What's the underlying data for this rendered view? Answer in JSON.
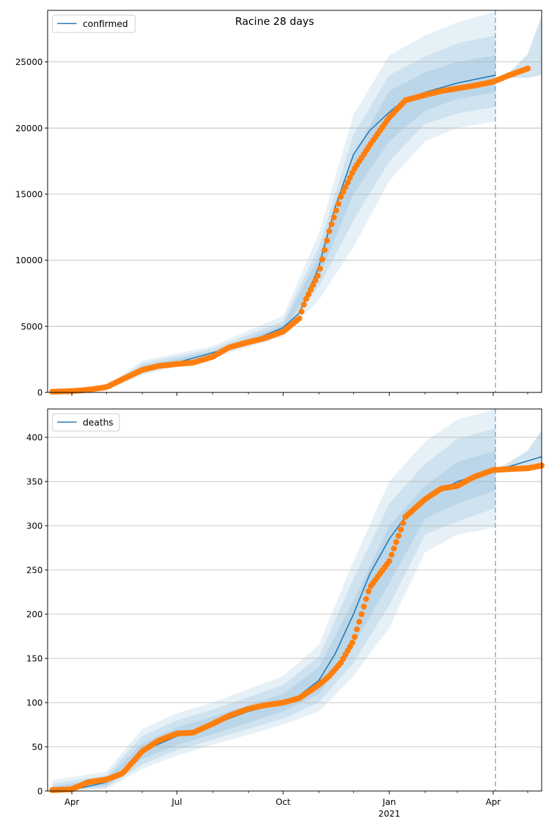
{
  "chart_data": [
    {
      "type": "line",
      "title": "Racine 28 days",
      "legend": {
        "label": "confirmed",
        "placement": "top-left"
      },
      "ylim": [
        0,
        28900
      ],
      "yticks": [
        0,
        5000,
        10000,
        15000,
        20000,
        25000
      ],
      "ytick_labels": [
        "0",
        "5000",
        "10000",
        "15000",
        "20000",
        "25000"
      ],
      "grid": "horizontal",
      "forecast_start": "2021-04-03",
      "series": [
        {
          "name": "confirmed",
          "kind": "model",
          "x": [
            "2020-03-15",
            "2020-04-01",
            "2020-05-01",
            "2020-05-15",
            "2020-06-01",
            "2020-07-01",
            "2020-08-01",
            "2020-09-01",
            "2020-10-01",
            "2020-10-15",
            "2020-11-01",
            "2020-11-15",
            "2020-12-01",
            "2020-12-15",
            "2021-01-01",
            "2021-01-15",
            "2021-02-01",
            "2021-03-01",
            "2021-04-03"
          ],
          "y": [
            0,
            50,
            300,
            900,
            1800,
            2250,
            3000,
            3800,
            4900,
            6000,
            9500,
            14000,
            18000,
            19800,
            21200,
            22200,
            22700,
            23400,
            24000
          ]
        },
        {
          "name": "observed",
          "kind": "points",
          "x": [
            "2020-03-15",
            "2020-04-01",
            "2020-04-15",
            "2020-05-01",
            "2020-05-15",
            "2020-06-01",
            "2020-06-15",
            "2020-07-01",
            "2020-07-15",
            "2020-08-01",
            "2020-08-15",
            "2020-09-01",
            "2020-09-15",
            "2020-10-01",
            "2020-10-15",
            "2020-10-20",
            "2020-11-01",
            "2020-11-10",
            "2020-11-20",
            "2020-12-01",
            "2020-12-15",
            "2021-01-01",
            "2021-01-15",
            "2021-02-01",
            "2021-02-15",
            "2021-03-01",
            "2021-03-15",
            "2021-04-01",
            "2021-04-15",
            "2021-05-01"
          ],
          "y": [
            50,
            100,
            200,
            400,
            1000,
            1700,
            2000,
            2150,
            2250,
            2700,
            3400,
            3800,
            4100,
            4600,
            5600,
            6900,
            9000,
            12200,
            14800,
            16800,
            18700,
            20800,
            22100,
            22500,
            22800,
            23000,
            23200,
            23500,
            24000,
            24500
          ]
        }
      ],
      "bands": [
        {
          "x": [
            "2020-03-15",
            "2020-05-01",
            "2020-06-01",
            "2020-08-01",
            "2020-10-01",
            "2020-11-01",
            "2020-12-01",
            "2021-01-01",
            "2021-02-01",
            "2021-03-01",
            "2021-04-03"
          ],
          "lower": [
            0,
            150,
            1300,
            2600,
            4200,
            7000,
            11000,
            16000,
            19000,
            20000,
            20500
          ],
          "upper": [
            50,
            500,
            2400,
            3500,
            5800,
            12000,
            21000,
            25500,
            27000,
            28000,
            28800
          ]
        },
        {
          "x": [
            "2020-03-15",
            "2020-05-01",
            "2020-06-01",
            "2020-08-01",
            "2020-10-01",
            "2020-11-01",
            "2020-12-01",
            "2021-01-01",
            "2021-02-01",
            "2021-03-01",
            "2021-04-03"
          ],
          "lower": [
            0,
            200,
            1450,
            2750,
            4450,
            8000,
            13000,
            17500,
            20300,
            21100,
            21600
          ],
          "upper": [
            30,
            420,
            2200,
            3300,
            5400,
            11000,
            19500,
            24000,
            25400,
            26400,
            27000
          ]
        },
        {
          "x": [
            "2020-03-15",
            "2020-05-01",
            "2020-06-01",
            "2020-08-01",
            "2020-10-01",
            "2020-11-01",
            "2020-12-01",
            "2021-01-01",
            "2021-02-01",
            "2021-03-01",
            "2021-04-03"
          ],
          "lower": [
            0,
            240,
            1600,
            2880,
            4650,
            8700,
            15000,
            19000,
            21300,
            22200,
            22700
          ],
          "upper": [
            20,
            360,
            2000,
            3120,
            5100,
            10300,
            18000,
            22800,
            24200,
            25000,
            25500
          ]
        }
      ],
      "forecast_band": {
        "x": [
          "2021-04-03",
          "2021-04-15",
          "2021-05-01",
          "2021-05-13"
        ],
        "lower": [
          23800,
          23800,
          23800,
          24000
        ],
        "upper": [
          23800,
          24200,
          25600,
          28500
        ]
      }
    },
    {
      "type": "line",
      "title": "",
      "legend": {
        "label": "deaths",
        "placement": "top-left"
      },
      "ylim": [
        0,
        432
      ],
      "yticks": [
        0,
        50,
        100,
        150,
        200,
        250,
        300,
        350,
        400
      ],
      "ytick_labels": [
        "0",
        "50",
        "100",
        "150",
        "200",
        "250",
        "300",
        "350",
        "400"
      ],
      "grid": "horizontal",
      "xticks": [
        "2020-04-01",
        "2020-07-01",
        "2020-10-01",
        "2021-01-01",
        "2021-04-01"
      ],
      "xtick_labels": [
        "Apr",
        "Jul",
        "Oct",
        "Jan",
        "Apr"
      ],
      "xtick_year_label": "2021",
      "forecast_start": "2021-04-03",
      "series": [
        {
          "name": "deaths",
          "kind": "model",
          "x": [
            "2020-03-15",
            "2020-04-01",
            "2020-05-01",
            "2020-05-15",
            "2020-06-01",
            "2020-07-01",
            "2020-08-01",
            "2020-09-01",
            "2020-10-01",
            "2020-10-15",
            "2020-11-01",
            "2020-11-15",
            "2020-12-01",
            "2020-12-15",
            "2021-01-01",
            "2021-01-15",
            "2021-02-01",
            "2021-03-01",
            "2021-04-03",
            "2021-04-15",
            "2021-05-13"
          ],
          "y": [
            0,
            1,
            10,
            20,
            45,
            62,
            75,
            90,
            100,
            108,
            125,
            155,
            200,
            245,
            285,
            310,
            330,
            350,
            363,
            367,
            378
          ]
        },
        {
          "name": "observed",
          "kind": "points",
          "x": [
            "2020-03-15",
            "2020-04-01",
            "2020-04-15",
            "2020-05-01",
            "2020-05-15",
            "2020-06-01",
            "2020-06-15",
            "2020-07-01",
            "2020-07-15",
            "2020-08-01",
            "2020-08-15",
            "2020-09-01",
            "2020-09-15",
            "2020-10-01",
            "2020-10-15",
            "2020-11-01",
            "2020-11-10",
            "2020-11-20",
            "2020-12-01",
            "2020-12-15",
            "2021-01-01",
            "2021-01-15",
            "2021-02-01",
            "2021-02-15",
            "2021-03-01",
            "2021-03-15",
            "2021-04-01",
            "2021-04-15",
            "2021-05-01",
            "2021-05-13"
          ],
          "y": [
            1,
            2,
            10,
            13,
            20,
            45,
            57,
            65,
            66,
            76,
            85,
            93,
            97,
            100,
            105,
            120,
            130,
            145,
            170,
            230,
            260,
            310,
            330,
            342,
            345,
            355,
            363,
            364,
            365,
            368
          ]
        }
      ],
      "bands": [
        {
          "x": [
            "2020-03-15",
            "2020-05-01",
            "2020-06-01",
            "2020-07-01",
            "2020-08-01",
            "2020-10-01",
            "2020-11-01",
            "2020-12-01",
            "2021-01-01",
            "2021-02-01",
            "2021-03-01",
            "2021-04-03"
          ],
          "lower": [
            0,
            2,
            25,
            40,
            52,
            75,
            90,
            130,
            185,
            270,
            290,
            298
          ],
          "upper": [
            12,
            22,
            70,
            88,
            100,
            130,
            165,
            260,
            350,
            395,
            420,
            432
          ]
        },
        {
          "x": [
            "2020-03-15",
            "2020-05-01",
            "2020-06-01",
            "2020-07-01",
            "2020-08-01",
            "2020-10-01",
            "2020-11-01",
            "2020-12-01",
            "2021-01-01",
            "2021-02-01",
            "2021-03-01",
            "2021-04-03"
          ],
          "lower": [
            0,
            4,
            30,
            46,
            58,
            82,
            100,
            145,
            210,
            290,
            305,
            320
          ],
          "upper": [
            8,
            18,
            62,
            80,
            92,
            120,
            152,
            240,
            325,
            370,
            398,
            410
          ]
        },
        {
          "x": [
            "2020-03-15",
            "2020-05-01",
            "2020-06-01",
            "2020-07-01",
            "2020-08-01",
            "2020-10-01",
            "2020-11-01",
            "2020-12-01",
            "2021-01-01",
            "2021-02-01",
            "2021-03-01",
            "2021-04-03"
          ],
          "lower": [
            0,
            6,
            36,
            52,
            64,
            90,
            110,
            165,
            235,
            308,
            325,
            340
          ],
          "upper": [
            5,
            14,
            54,
            72,
            84,
            110,
            140,
            215,
            300,
            345,
            372,
            385
          ]
        }
      ],
      "forecast_band": {
        "x": [
          "2021-04-03",
          "2021-04-15",
          "2021-05-01",
          "2021-05-13"
        ],
        "lower": [
          363,
          364,
          366,
          368
        ],
        "upper": [
          363,
          372,
          385,
          408
        ]
      }
    }
  ],
  "colors": {
    "model_line": "#1f77b4",
    "observed_points": "#ff7f0e",
    "band_fill": "#1f77b4",
    "grid": "#b0b0b0",
    "forecast_line": "#7fb2d9"
  }
}
